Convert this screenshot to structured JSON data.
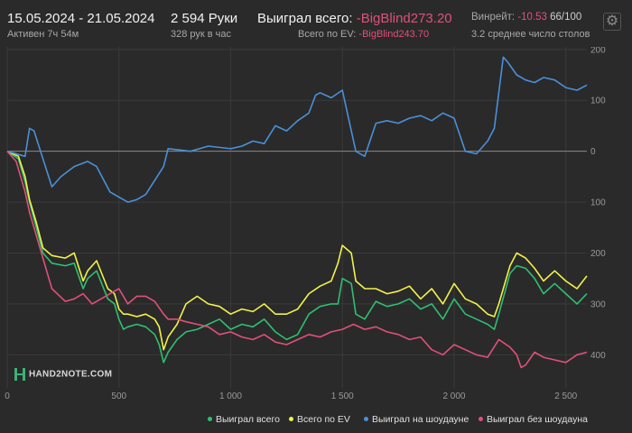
{
  "header": {
    "date_range": "15.05.2024 - 21.05.2024",
    "active": "Активен 7ч 54м",
    "hands": "2 594 Руки",
    "hands_rate": "328 рук в час",
    "won_label": "Выиграл всего:",
    "won_value": "-BigBlind273.20",
    "ev_label": "Всего по EV:",
    "ev_value": "-BigBlind243.70",
    "winrate_label": "Винрейт:",
    "winrate_value": "-10.53",
    "winrate_suffix": "66/100",
    "tables": "3.2 среднее число столов",
    "gear_icon": "gear-icon"
  },
  "logo": {
    "text": "HAND2NOTE.COM"
  },
  "colors": {
    "green": "#2fbf71",
    "yellow": "#f2f24a",
    "blue": "#4a90d9",
    "pink": "#e0507a"
  },
  "chart_data": {
    "type": "line",
    "xlim": [
      0,
      2594
    ],
    "ylim": [
      -465,
      205
    ],
    "y_inverted_labels": true,
    "x_ticks": [
      {
        "v": 0,
        "label": "0"
      },
      {
        "v": 500,
        "label": "500"
      },
      {
        "v": 1000,
        "label": "1 000"
      },
      {
        "v": 1500,
        "label": "1 500"
      },
      {
        "v": 2000,
        "label": "2 000"
      },
      {
        "v": 2500,
        "label": "2 500"
      }
    ],
    "y_ticks": [
      {
        "v": 200,
        "label": "200"
      },
      {
        "v": 100,
        "label": "100"
      },
      {
        "v": 0,
        "label": "0"
      },
      {
        "v": -100,
        "label": "100"
      },
      {
        "v": -200,
        "label": "200"
      },
      {
        "v": -300,
        "label": "300"
      },
      {
        "v": -400,
        "label": "400"
      }
    ],
    "grid": true,
    "legend_position": "bottom",
    "series": [
      {
        "name": "Выиграл всего",
        "color": "#2fbf71",
        "x": [
          0,
          50,
          80,
          100,
          130,
          160,
          200,
          260,
          300,
          340,
          360,
          400,
          450,
          480,
          500,
          520,
          540,
          580,
          620,
          660,
          680,
          700,
          720,
          760,
          800,
          850,
          900,
          950,
          1000,
          1050,
          1100,
          1150,
          1200,
          1250,
          1300,
          1350,
          1400,
          1450,
          1480,
          1500,
          1540,
          1560,
          1600,
          1650,
          1700,
          1750,
          1800,
          1850,
          1900,
          1950,
          2000,
          2050,
          2100,
          2150,
          2180,
          2200,
          2250,
          2280,
          2320,
          2360,
          2400,
          2450,
          2500,
          2550,
          2594
        ],
        "y": [
          0,
          -15,
          -60,
          -100,
          -150,
          -200,
          -220,
          -225,
          -220,
          -270,
          -250,
          -235,
          -290,
          -300,
          -330,
          -350,
          -345,
          -340,
          -345,
          -360,
          -380,
          -415,
          -395,
          -370,
          -355,
          -350,
          -340,
          -330,
          -350,
          -340,
          -345,
          -330,
          -355,
          -370,
          -360,
          -320,
          -305,
          -300,
          -300,
          -250,
          -260,
          -320,
          -330,
          -295,
          -305,
          -300,
          -290,
          -310,
          -300,
          -330,
          -290,
          -320,
          -330,
          -340,
          -350,
          -320,
          -240,
          -225,
          -230,
          -250,
          -280,
          -260,
          -280,
          -300,
          -280
        ]
      },
      {
        "name": "Всего по EV",
        "color": "#f2f24a",
        "x": [
          0,
          50,
          80,
          100,
          130,
          160,
          200,
          260,
          300,
          340,
          360,
          400,
          450,
          480,
          500,
          520,
          540,
          580,
          620,
          660,
          680,
          700,
          720,
          760,
          800,
          850,
          900,
          950,
          1000,
          1050,
          1100,
          1150,
          1200,
          1250,
          1300,
          1350,
          1400,
          1450,
          1480,
          1500,
          1540,
          1560,
          1600,
          1650,
          1700,
          1750,
          1800,
          1850,
          1900,
          1950,
          2000,
          2050,
          2100,
          2150,
          2180,
          2200,
          2250,
          2280,
          2320,
          2360,
          2400,
          2450,
          2500,
          2550,
          2594
        ],
        "y": [
          0,
          -10,
          -50,
          -95,
          -140,
          -190,
          -205,
          -210,
          -200,
          -255,
          -235,
          -215,
          -270,
          -280,
          -310,
          -320,
          -320,
          -325,
          -320,
          -330,
          -345,
          -390,
          -365,
          -340,
          -300,
          -285,
          -300,
          -305,
          -320,
          -310,
          -315,
          -300,
          -320,
          -320,
          -310,
          -280,
          -265,
          -255,
          -220,
          -185,
          -200,
          -255,
          -270,
          -270,
          -280,
          -275,
          -265,
          -290,
          -270,
          -300,
          -260,
          -290,
          -300,
          -320,
          -325,
          -300,
          -225,
          -200,
          -210,
          -230,
          -255,
          -235,
          -255,
          -270,
          -245
        ]
      },
      {
        "name": "Выиграл на шоудауне",
        "color": "#4a90d9",
        "x": [
          0,
          80,
          100,
          120,
          200,
          240,
          300,
          360,
          400,
          460,
          540,
          580,
          620,
          700,
          720,
          820,
          900,
          1000,
          1050,
          1100,
          1150,
          1200,
          1250,
          1300,
          1350,
          1380,
          1400,
          1450,
          1500,
          1560,
          1600,
          1650,
          1700,
          1750,
          1800,
          1850,
          1900,
          1950,
          2000,
          2050,
          2100,
          2150,
          2180,
          2220,
          2240,
          2280,
          2320,
          2360,
          2400,
          2450,
          2500,
          2550,
          2594
        ],
        "y": [
          0,
          -10,
          45,
          40,
          -70,
          -50,
          -30,
          -20,
          -30,
          -80,
          -100,
          -95,
          -85,
          -30,
          5,
          0,
          10,
          5,
          10,
          20,
          15,
          50,
          40,
          60,
          75,
          110,
          115,
          105,
          120,
          0,
          -10,
          55,
          60,
          55,
          65,
          70,
          60,
          75,
          65,
          0,
          -5,
          20,
          45,
          185,
          175,
          150,
          140,
          135,
          145,
          140,
          125,
          120,
          130
        ]
      },
      {
        "name": "Выиграл без шоудауна",
        "color": "#e0507a",
        "x": [
          0,
          40,
          80,
          100,
          140,
          180,
          200,
          260,
          300,
          340,
          380,
          420,
          460,
          500,
          540,
          580,
          620,
          660,
          700,
          720,
          760,
          800,
          850,
          900,
          950,
          1000,
          1050,
          1100,
          1150,
          1200,
          1250,
          1300,
          1350,
          1400,
          1450,
          1500,
          1550,
          1600,
          1650,
          1700,
          1750,
          1800,
          1850,
          1900,
          1950,
          2000,
          2050,
          2100,
          2150,
          2200,
          2250,
          2280,
          2300,
          2320,
          2360,
          2400,
          2450,
          2500,
          2550,
          2594
        ],
        "y": [
          0,
          -20,
          -80,
          -120,
          -180,
          -240,
          -270,
          -295,
          -290,
          -280,
          -300,
          -290,
          -280,
          -270,
          -300,
          -285,
          -285,
          -295,
          -320,
          -330,
          -330,
          -335,
          -340,
          -345,
          -360,
          -355,
          -365,
          -370,
          -360,
          -375,
          -380,
          -370,
          -360,
          -365,
          -355,
          -350,
          -340,
          -350,
          -345,
          -355,
          -360,
          -370,
          -365,
          -390,
          -400,
          -380,
          -390,
          -400,
          -405,
          -370,
          -385,
          -400,
          -425,
          -420,
          -395,
          -405,
          -410,
          -415,
          -400,
          -395
        ]
      }
    ]
  }
}
